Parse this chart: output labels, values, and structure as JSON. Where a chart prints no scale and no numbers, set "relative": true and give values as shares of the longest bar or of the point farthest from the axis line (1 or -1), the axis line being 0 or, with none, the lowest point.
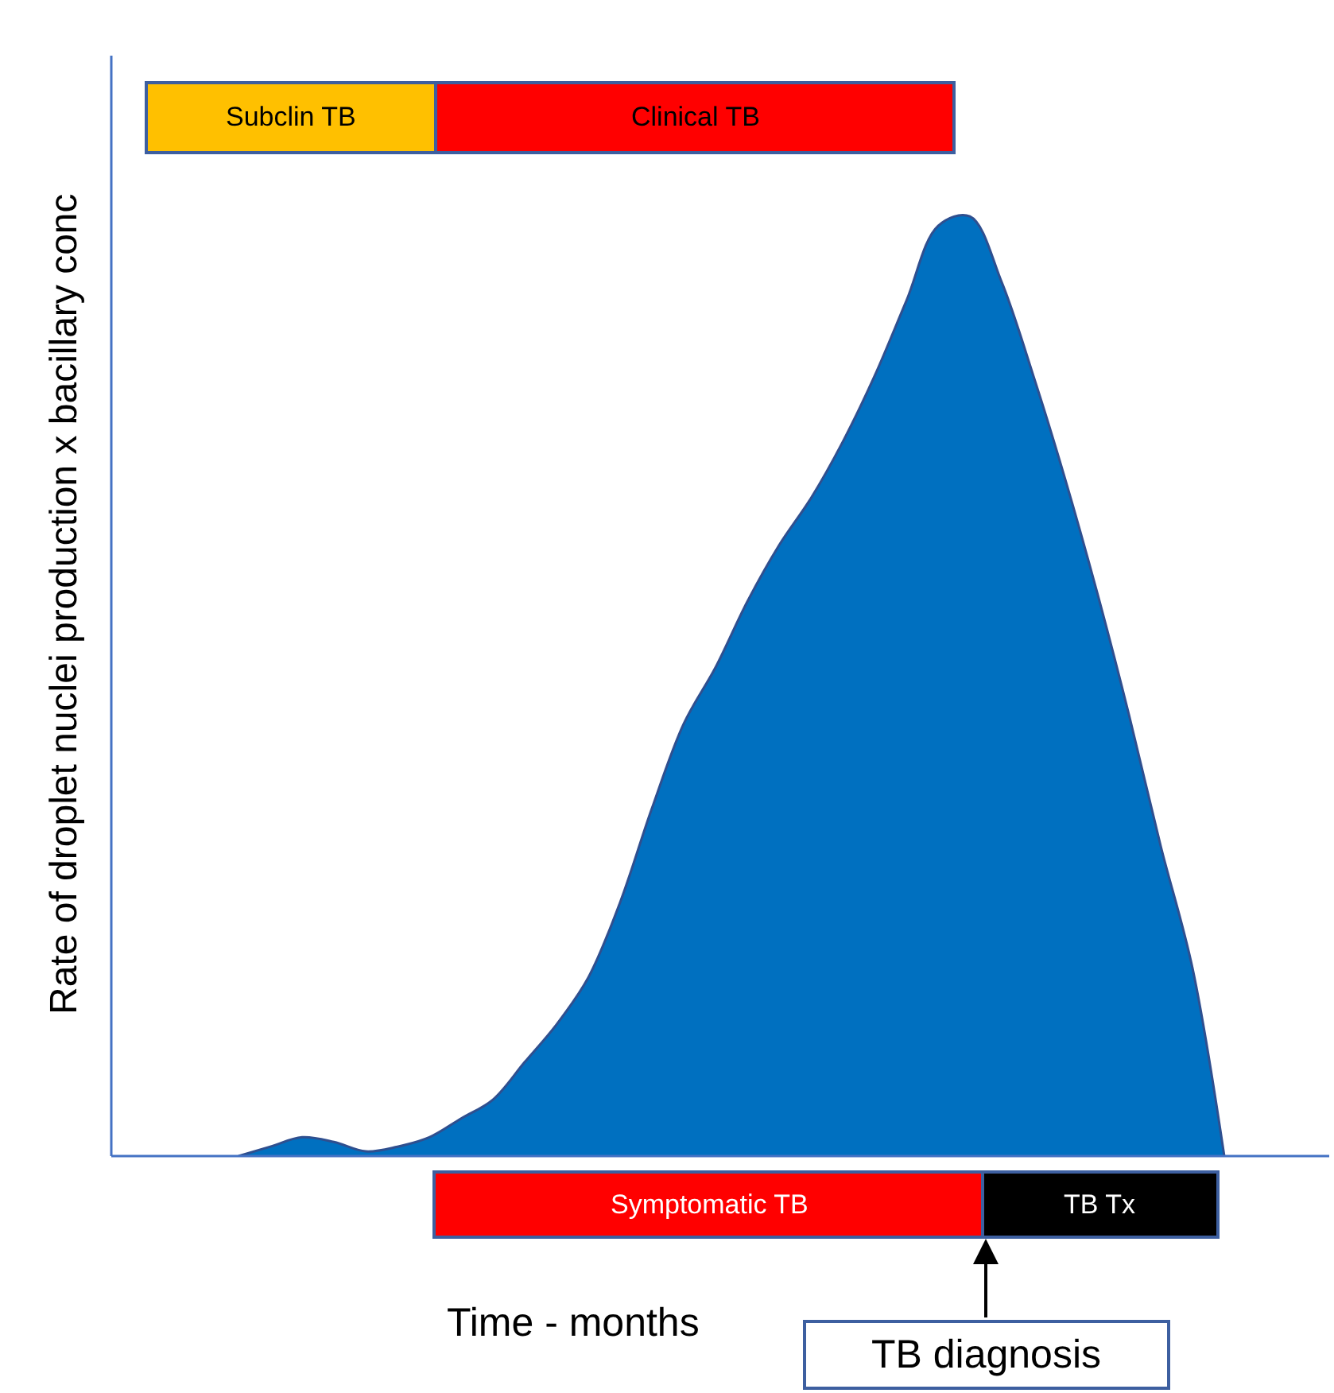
{
  "chart_data": {
    "type": "area",
    "relative": true,
    "xlabel": "Time - months",
    "ylabel": "Rate of droplet nuclei production x bacillary conc",
    "categories": [
      null,
      null,
      null,
      null,
      null,
      null,
      null,
      null,
      null,
      null,
      null,
      null,
      null,
      null,
      null,
      null,
      null,
      null,
      null,
      null,
      null,
      null,
      null,
      null,
      null,
      null,
      null,
      null,
      null,
      null,
      null,
      null,
      null,
      null,
      null,
      null,
      null,
      null,
      null
    ],
    "series": [
      {
        "color": "#0070c0",
        "values": [
          null,
          null,
          null,
          null,
          0,
          0.01,
          0.02,
          0.015,
          0.005,
          0.01,
          0.02,
          0.04,
          0.06,
          0.1,
          0.14,
          0.19,
          0.27,
          0.37,
          0.46,
          0.52,
          0.59,
          0.65,
          0.7,
          0.76,
          0.83,
          0.91,
          0.99,
          1.0,
          0.93,
          0.83,
          0.72,
          0.6,
          0.47,
          0.33,
          0.2,
          0,
          null,
          null,
          null
        ]
      }
    ],
    "annotations": [
      "Subclin TB",
      "Clinical TB",
      "Symptomatic TB",
      "TB Tx",
      "TB diagnosis"
    ],
    "legend": false
  }
}
